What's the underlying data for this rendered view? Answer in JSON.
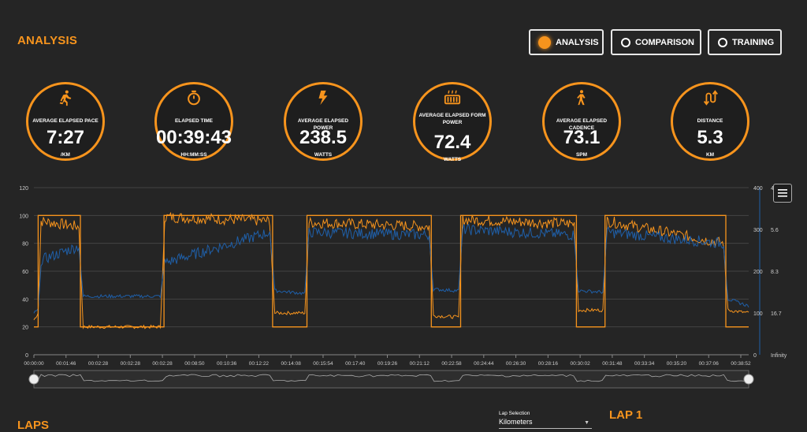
{
  "header": {
    "title": "ANALYSIS"
  },
  "tabs": [
    {
      "label": "ANALYSIS",
      "active": true
    },
    {
      "label": "COMPARISON",
      "active": false
    },
    {
      "label": "TRAINING",
      "active": false
    }
  ],
  "metrics": [
    {
      "label": "AVERAGE ELAPSED PACE",
      "value": "7:27",
      "unit": "/KM",
      "icon": "running-icon"
    },
    {
      "label": "ELAPSED TIME",
      "value": "00:39:43",
      "unit": "HH:MM:SS",
      "icon": "stopwatch-icon"
    },
    {
      "label": "AVERAGE ELAPSED POWER",
      "value": "238.5",
      "unit": "WATTS",
      "icon": "lightning-icon"
    },
    {
      "label": "AVERAGE ELAPSED FORM POWER",
      "value": "72.4",
      "unit": "WATTS",
      "icon": "heater-icon"
    },
    {
      "label": "AVERAGE ELAPSED CADENCE",
      "value": "73.1",
      "unit": "SPM",
      "icon": "walking-icon"
    },
    {
      "label": "DISTANCE",
      "value": "5.3",
      "unit": "KM",
      "icon": "route-arrows-icon"
    }
  ],
  "chart_data": {
    "type": "line",
    "x_ticks": [
      "00:00:00",
      "00:01:46",
      "00:02:28",
      "00:02:28",
      "00:02:28",
      "00:08:50",
      "00:10:36",
      "00:12:22",
      "00:14:08",
      "00:15:54",
      "00:17:40",
      "00:19:26",
      "00:21:12",
      "00:22:58",
      "00:24:44",
      "00:26:30",
      "00:28:16",
      "00:30:02",
      "00:31:48",
      "00:33:34",
      "00:35:20",
      "00:37:06",
      "00:38:52"
    ],
    "y_left": {
      "ticks": [
        "0",
        "20",
        "40",
        "60",
        "80",
        "100",
        "120"
      ],
      "range": [
        0,
        120
      ]
    },
    "y_right_1": {
      "ticks": [
        "0",
        "100",
        "200",
        "300",
        "400"
      ],
      "range": [
        0,
        400
      ]
    },
    "y_right_2": {
      "ticks": [
        "Infinity",
        "16.7",
        "8.3",
        "5.6",
        "4"
      ]
    },
    "grid": true,
    "series": [
      {
        "color": "#f7941d",
        "segments": [
          {
            "x": [
              0,
              0.6
            ],
            "y": [
              25,
              30
            ]
          },
          {
            "x": [
              1.0,
              6.3
            ],
            "y": [
              96,
              92
            ]
          },
          {
            "x": [
              6.9,
              17.7
            ],
            "y": [
              20,
              20
            ]
          },
          {
            "x": [
              18.3,
              33.0
            ],
            "y": [
              99,
              96
            ]
          },
          {
            "x": [
              33.7,
              37.9
            ],
            "y": [
              30,
              30
            ]
          },
          {
            "x": [
              38.5,
              55.3
            ],
            "y": [
              95,
              92
            ]
          },
          {
            "x": [
              55.9,
              59.4
            ],
            "y": [
              28,
              27
            ]
          },
          {
            "x": [
              60.0,
              75.6
            ],
            "y": [
              97,
              94
            ]
          },
          {
            "x": [
              76.2,
              79.6
            ],
            "y": [
              32,
              32
            ]
          },
          {
            "x": [
              80.2,
              96.5
            ],
            "y": [
              96,
              80
            ]
          },
          {
            "x": [
              97.1,
              100
            ],
            "y": [
              32,
              30
            ]
          }
        ]
      },
      {
        "color": "#1f5fa8",
        "segments": [
          {
            "x": [
              0,
              0.6
            ],
            "y": [
              30,
              32
            ]
          },
          {
            "x": [
              1.0,
              6.3
            ],
            "y": [
              68,
              78
            ]
          },
          {
            "x": [
              6.9,
              17.7
            ],
            "y": [
              42,
              42
            ]
          },
          {
            "x": [
              18.3,
              33.0
            ],
            "y": [
              66,
              88
            ]
          },
          {
            "x": [
              33.7,
              37.9
            ],
            "y": [
              46,
              44
            ]
          },
          {
            "x": [
              38.5,
              55.3
            ],
            "y": [
              88,
              86
            ]
          },
          {
            "x": [
              55.9,
              59.4
            ],
            "y": [
              47,
              46
            ]
          },
          {
            "x": [
              60.0,
              75.6
            ],
            "y": [
              90,
              86
            ]
          },
          {
            "x": [
              76.2,
              79.6
            ],
            "y": [
              46,
              45
            ]
          },
          {
            "x": [
              80.2,
              96.5
            ],
            "y": [
              88,
              80
            ]
          },
          {
            "x": [
              97.1,
              100
            ],
            "y": [
              40,
              35
            ]
          }
        ]
      },
      {
        "color": "#f7941d",
        "segments": [
          {
            "x": [
              0,
              0.6
            ],
            "y": [
              20,
              20
            ]
          },
          {
            "x": [
              0.6,
              6.5
            ],
            "y": [
              100,
              100
            ]
          },
          {
            "x": [
              6.5,
              18.2
            ],
            "y": [
              20,
              20
            ]
          },
          {
            "x": [
              18.2,
              33.4
            ],
            "y": [
              100,
              100
            ]
          },
          {
            "x": [
              33.4,
              38.2
            ],
            "y": [
              20,
              20
            ]
          },
          {
            "x": [
              38.2,
              55.6
            ],
            "y": [
              100,
              100
            ]
          },
          {
            "x": [
              55.6,
              59.7
            ],
            "y": [
              20,
              20
            ]
          },
          {
            "x": [
              59.7,
              75.9
            ],
            "y": [
              100,
              100
            ]
          },
          {
            "x": [
              75.9,
              79.9
            ],
            "y": [
              20,
              20
            ]
          },
          {
            "x": [
              79.9,
              96.8
            ],
            "y": [
              100,
              100
            ]
          },
          {
            "x": [
              96.8,
              100
            ],
            "y": [
              20,
              20
            ]
          }
        ]
      }
    ]
  },
  "laps": {
    "title": "LAPS"
  },
  "lap_selection": {
    "label": "Lap Selection",
    "value": "Kilometers"
  },
  "lap_detail": {
    "title": "LAP 1"
  }
}
